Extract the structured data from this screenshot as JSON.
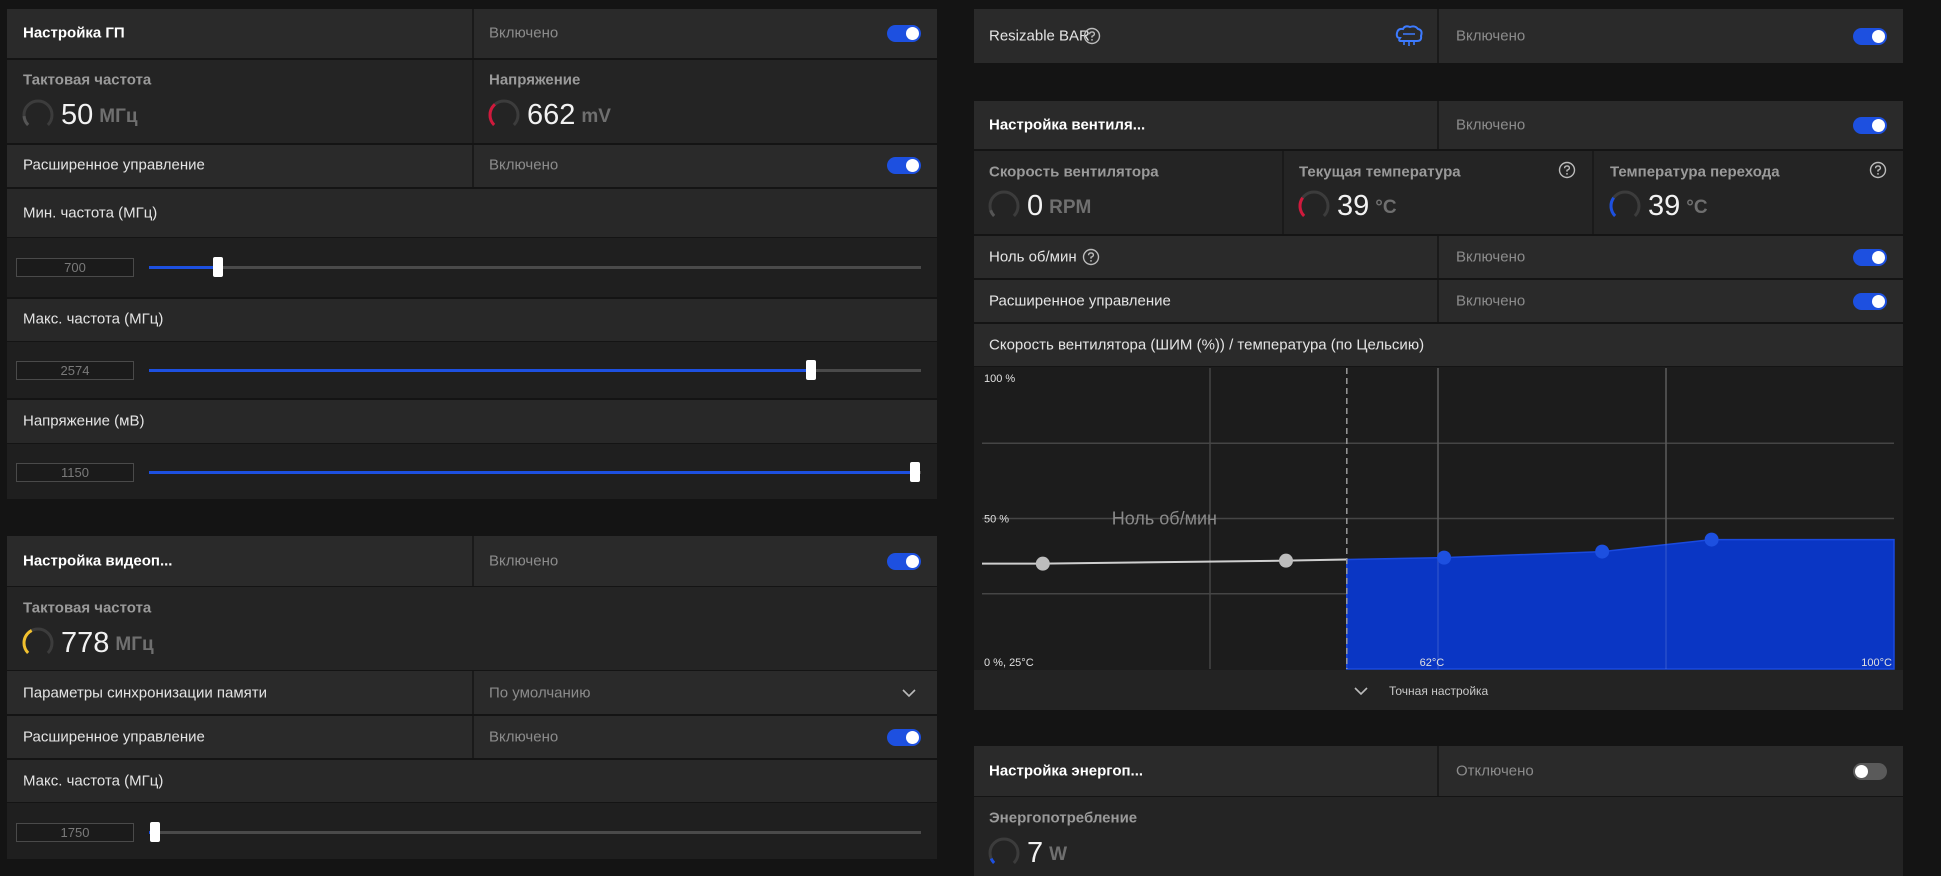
{
  "gpu_tuning": {
    "title": "Настройка ГП",
    "state": "Включено",
    "clock": {
      "label": "Тактовая частота",
      "value": 50,
      "unit": "МГц"
    },
    "voltage": {
      "label": "Напряжение",
      "value": 662,
      "unit": "mV"
    },
    "advanced": {
      "label": "Расширенное управление",
      "state": "Включено"
    },
    "min_clock": {
      "label": "Мин. частота (МГц)",
      "value": 700
    },
    "max_clock": {
      "label": "Макс. частота (МГц)",
      "value": 2574
    },
    "voltage_limit": {
      "label": "Напряжение (мВ)",
      "value": 1150
    }
  },
  "vram_tuning": {
    "title": "Настройка видеоп...",
    "state": "Включено",
    "clock": {
      "label": "Тактовая частота",
      "value": 778,
      "unit": "МГц"
    },
    "memory_timing": {
      "label": "Параметры синхронизации памяти",
      "state": "По умолчанию"
    },
    "advanced": {
      "label": "Расширенное управление",
      "state": "Включено"
    },
    "max_clock": {
      "label": "Макс. частота (МГц)",
      "value": 1750
    }
  },
  "resizable_bar": {
    "label": "Resizable BAR",
    "state": "Включено"
  },
  "fan_tuning": {
    "title": "Настройка вентиля...",
    "state": "Включено",
    "fan_speed": {
      "label": "Скорость вентилятора",
      "value": 0,
      "unit": "RPM"
    },
    "current_temp": {
      "label": "Текущая температура",
      "value": 39,
      "unit": "°C"
    },
    "junction_temp": {
      "label": "Температура перехода",
      "value": 39,
      "unit": "°C"
    },
    "zero_rpm": {
      "label": "Ноль об/мин",
      "state": "Включено"
    },
    "advanced": {
      "label": "Расширенное управление",
      "state": "Включено"
    },
    "curve": {
      "title": "Скорость вентилятора (ШИМ (%)) / температура (по Цельсию)",
      "zero_rpm_label": "Ноль об/мин",
      "zero_rpm_temp": 55,
      "xlim": [
        25,
        100
      ],
      "ylim": [
        0,
        100
      ],
      "xticks": [
        {
          "value": 62,
          "label": "62°C"
        },
        {
          "value": 100,
          "label": "100°C"
        }
      ],
      "yticks": [
        {
          "value": 0,
          "label": "0 %, 25°C"
        },
        {
          "value": 50,
          "label": "50 %"
        },
        {
          "value": 100,
          "label": "100 %"
        }
      ],
      "xgrid": [
        43.75,
        62.5,
        81.25
      ],
      "ygrid": [
        25,
        50,
        75
      ],
      "points": {
        "x": [
          30,
          50,
          63,
          76,
          85
        ],
        "y": [
          35,
          36,
          37,
          39,
          43
        ]
      }
    },
    "fine_tune": "Точная настройка"
  },
  "power_tuning": {
    "title": "Настройка энергоп...",
    "state": "Отключено",
    "power": {
      "label": "Энергопотребление",
      "value": 7,
      "unit": "W"
    }
  }
}
